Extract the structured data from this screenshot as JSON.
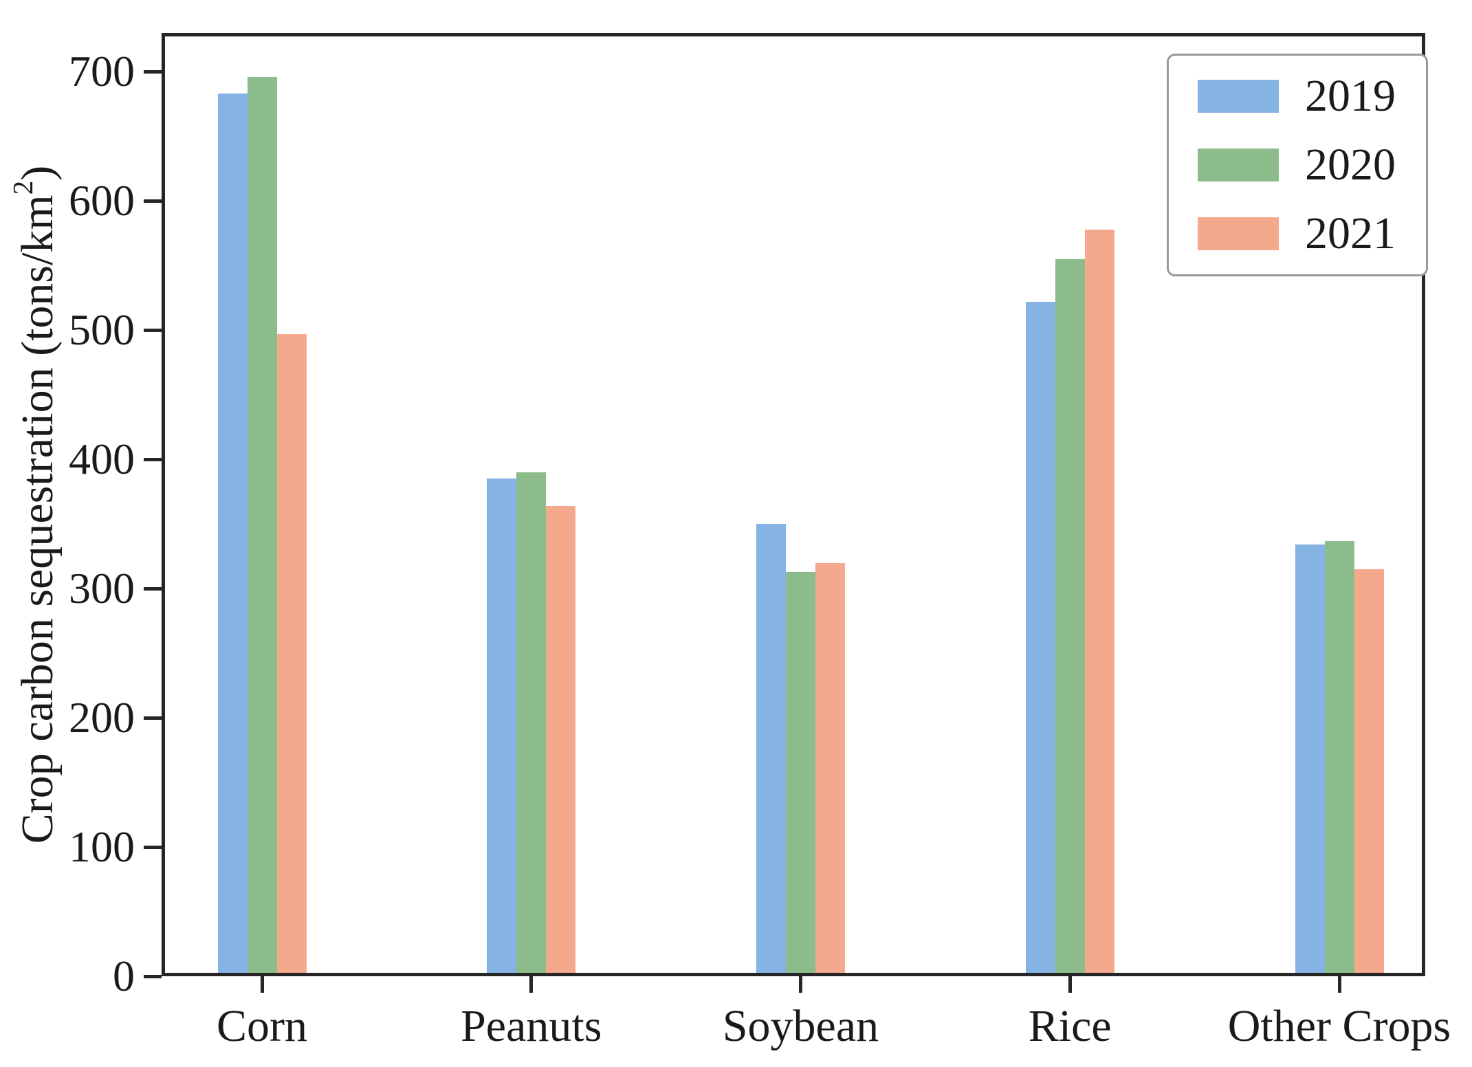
{
  "chart_data": {
    "type": "bar",
    "title": "",
    "categories": [
      "Corn",
      "Peanuts",
      "Soybean",
      "Rice",
      "Other Crops"
    ],
    "series": [
      {
        "name": "2019",
        "color": "#85b3e3",
        "values": [
          683,
          385,
          350,
          522,
          334
        ]
      },
      {
        "name": "2020",
        "color": "#8cbc8c",
        "values": [
          696,
          390,
          313,
          555,
          337
        ]
      },
      {
        "name": "2021",
        "color": "#f4a88c",
        "values": [
          497,
          364,
          320,
          578,
          315
        ]
      }
    ],
    "xlabel": "",
    "ylabel": "Crop carbon sequestration (tons/km²)",
    "ylabel_parts": [
      "Crop carbon sequestration (tons/km",
      "2",
      ")"
    ],
    "yticks": [
      0,
      100,
      200,
      300,
      400,
      500,
      600,
      700
    ],
    "ylim": [
      0,
      730
    ],
    "grid": false,
    "legend": {
      "position": "upper-right",
      "entries": [
        "2019",
        "2020",
        "2021"
      ]
    }
  },
  "colors": {
    "background": "#ffffff",
    "spine": "#262626",
    "text": "#1a1a1a",
    "legend_border": "#9a9a9a",
    "series_2019": "#85b3e3",
    "series_2020": "#8cbc8c",
    "series_2021": "#f4a88c"
  }
}
